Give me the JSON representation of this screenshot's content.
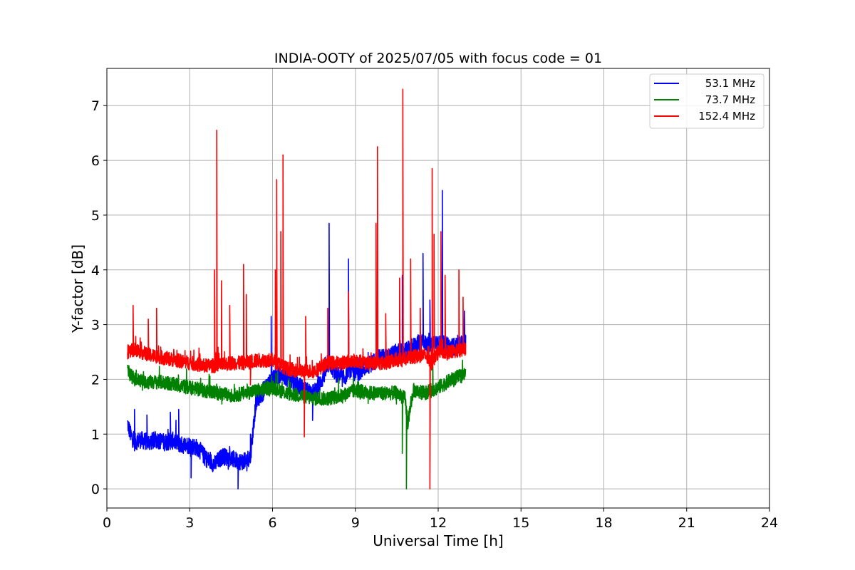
{
  "chart_data": {
    "type": "line",
    "title": "INDIA-OOTY of 2025/07/05 with focus code = 01",
    "xlabel": "Universal Time [h]",
    "ylabel": "Y-factor [dB]",
    "xlim": [
      0,
      24
    ],
    "ylim": [
      -0.35,
      7.68
    ],
    "xticks": [
      0,
      3,
      6,
      9,
      12,
      15,
      18,
      21,
      24
    ],
    "yticks": [
      0,
      1,
      2,
      3,
      4,
      5,
      6,
      7
    ],
    "grid": true,
    "legend": "top-right",
    "series": [
      {
        "name": " 53.1 MHz",
        "color": "#0000ff",
        "x": [
          0.75,
          0.85,
          1.0,
          1.2,
          1.5,
          1.8,
          2.1,
          2.4,
          2.7,
          3.0,
          3.3,
          3.6,
          3.9,
          4.2,
          4.5,
          4.8,
          5.0,
          5.2,
          5.4,
          5.7,
          6.0,
          6.3,
          6.6,
          6.9,
          7.2,
          7.5,
          7.8,
          8.05,
          8.3,
          8.6,
          8.75,
          9.0,
          9.3,
          9.6,
          9.9,
          10.2,
          10.5,
          10.8,
          11.1,
          11.4,
          11.7,
          12.0,
          12.15,
          12.4,
          12.7,
          13.0
        ],
        "y": [
          1.2,
          1.0,
          0.85,
          0.9,
          0.85,
          0.9,
          0.85,
          0.88,
          0.8,
          0.8,
          0.75,
          0.55,
          0.45,
          0.6,
          0.55,
          0.5,
          0.5,
          0.6,
          1.6,
          1.8,
          2.0,
          2.1,
          2.0,
          1.9,
          1.8,
          1.75,
          2.0,
          2.3,
          2.1,
          2.0,
          2.2,
          2.1,
          2.2,
          2.3,
          2.4,
          2.4,
          2.5,
          2.5,
          2.6,
          2.7,
          2.6,
          2.7,
          2.6,
          2.6,
          2.6,
          2.7
        ]
      },
      {
        "name": " 73.7 MHz",
        "color": "#008000",
        "x": [
          0.75,
          1.0,
          1.5,
          2.0,
          2.5,
          3.0,
          3.5,
          4.0,
          4.5,
          5.0,
          5.5,
          6.0,
          6.5,
          7.0,
          7.5,
          8.0,
          8.5,
          9.0,
          9.5,
          10.0,
          10.5,
          10.8,
          10.9,
          11.1,
          11.5,
          12.0,
          12.5,
          13.0
        ],
        "y": [
          2.15,
          2.0,
          1.95,
          1.95,
          1.9,
          1.85,
          1.8,
          1.75,
          1.7,
          1.75,
          1.8,
          1.85,
          1.75,
          1.7,
          1.65,
          1.65,
          1.7,
          1.8,
          1.75,
          1.75,
          1.75,
          1.65,
          1.2,
          1.8,
          1.75,
          1.85,
          2.0,
          2.1
        ]
      },
      {
        "name": "152.4 MHz",
        "color": "#ff0000",
        "x": [
          0.75,
          1.0,
          1.5,
          2.0,
          2.5,
          3.0,
          3.5,
          4.0,
          4.5,
          5.0,
          5.5,
          6.0,
          6.5,
          7.0,
          7.5,
          8.0,
          8.5,
          9.0,
          9.5,
          10.0,
          10.5,
          11.0,
          11.5,
          11.75,
          12.0,
          12.5,
          13.0
        ],
        "y": [
          2.5,
          2.55,
          2.45,
          2.4,
          2.35,
          2.3,
          2.25,
          2.25,
          2.3,
          2.3,
          2.35,
          2.35,
          2.2,
          2.15,
          2.15,
          2.3,
          2.3,
          2.35,
          2.3,
          2.3,
          2.35,
          2.4,
          2.45,
          2.3,
          2.5,
          2.5,
          2.55
        ]
      }
    ],
    "spikes": {
      "53.1 MHz": [
        [
          1.0,
          1.45
        ],
        [
          1.45,
          1.35
        ],
        [
          2.3,
          1.4
        ],
        [
          2.6,
          1.45
        ],
        [
          3.05,
          0.2
        ],
        [
          4.75,
          0.0
        ],
        [
          5.0,
          0.4
        ],
        [
          5.2,
          1.0
        ],
        [
          5.95,
          3.15
        ],
        [
          6.1,
          2.6
        ],
        [
          7.45,
          1.25
        ],
        [
          8.05,
          4.85
        ],
        [
          8.75,
          4.2
        ],
        [
          10.7,
          3.9
        ],
        [
          11.45,
          4.3
        ],
        [
          11.7,
          3.45
        ],
        [
          12.15,
          5.45
        ],
        [
          12.95,
          3.25
        ]
      ],
      "73.7 MHz": [
        [
          10.7,
          0.65
        ],
        [
          10.85,
          0.0
        ],
        [
          11.8,
          2.5
        ]
      ],
      "152.4 MHz": [
        [
          0.95,
          3.35
        ],
        [
          1.5,
          3.1
        ],
        [
          1.8,
          3.3
        ],
        [
          3.9,
          4.0
        ],
        [
          3.98,
          6.55
        ],
        [
          4.15,
          3.8
        ],
        [
          4.45,
          3.35
        ],
        [
          4.95,
          4.1
        ],
        [
          5.05,
          3.55
        ],
        [
          5.2,
          1.9
        ],
        [
          6.1,
          4.0
        ],
        [
          6.15,
          5.65
        ],
        [
          6.3,
          4.7
        ],
        [
          6.38,
          6.1
        ],
        [
          6.9,
          2.4
        ],
        [
          7.15,
          0.95
        ],
        [
          7.2,
          3.15
        ],
        [
          8.0,
          3.3
        ],
        [
          8.75,
          3.6
        ],
        [
          9.75,
          4.85
        ],
        [
          9.8,
          6.25
        ],
        [
          10.1,
          3.2
        ],
        [
          10.6,
          3.85
        ],
        [
          10.72,
          7.3
        ],
        [
          11.0,
          4.2
        ],
        [
          11.35,
          3.3
        ],
        [
          11.7,
          0.0
        ],
        [
          11.78,
          5.85
        ],
        [
          11.85,
          4.65
        ],
        [
          12.1,
          4.7
        ],
        [
          12.25,
          3.9
        ],
        [
          12.75,
          4.0
        ],
        [
          12.9,
          3.5
        ]
      ]
    }
  }
}
